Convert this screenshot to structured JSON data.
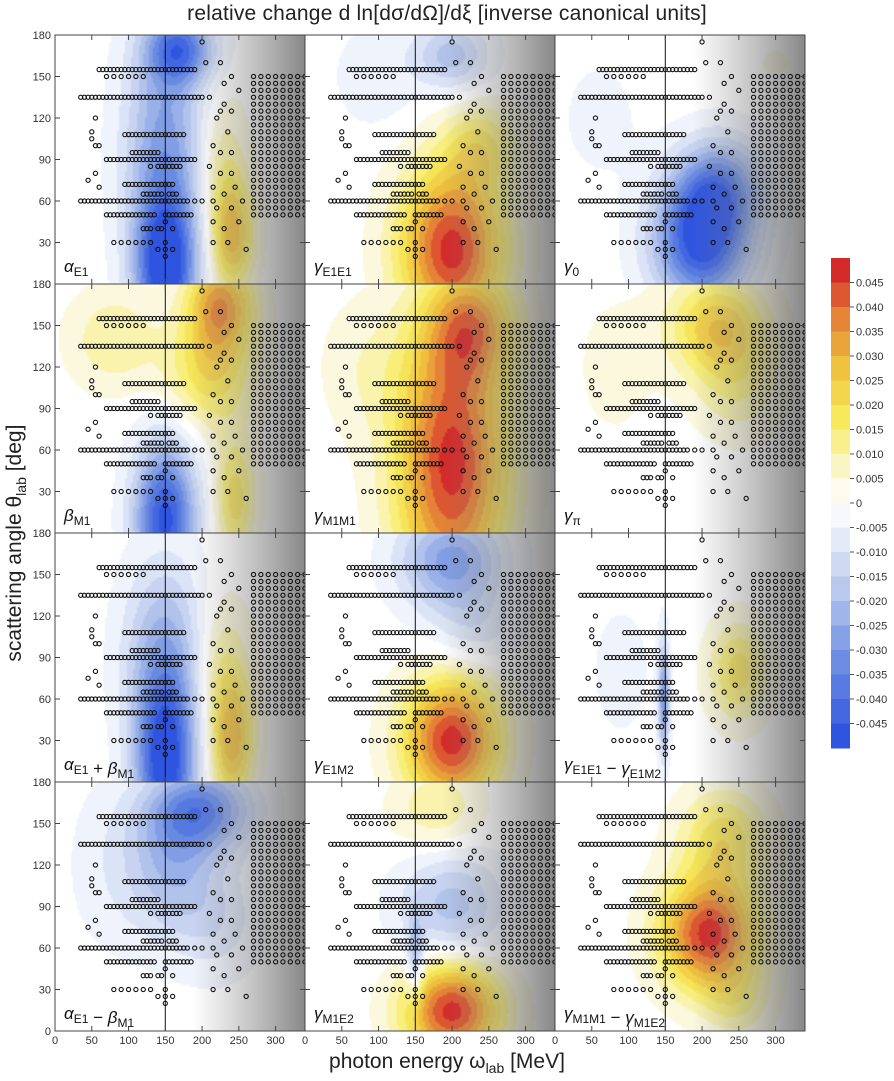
{
  "chart_data": {
    "type": "heatmap",
    "title": "relative change  d ln[dσ/dΩ]/dξ  [inverse canonical units]",
    "xlabel": "photon energy ω",
    "xlabel_sub": "lab",
    "xlabel_unit": "[MeV]",
    "ylabel": "scattering angle θ",
    "ylabel_sub": "lab",
    "ylabel_unit": "[deg]",
    "xlim": [
      0,
      340
    ],
    "ylim": [
      0,
      180
    ],
    "x_ticks": [
      0,
      50,
      100,
      150,
      200,
      250,
      300
    ],
    "y_ticks": [
      0,
      30,
      60,
      90,
      120,
      150,
      180
    ],
    "threshold_energy": 150,
    "colorbar": {
      "ticks": [
        "0.045",
        "0.040",
        "0.035",
        "0.030",
        "0.025",
        "0.020",
        "0.015",
        "0.010",
        "0.005",
        "0",
        "-0.005",
        "-0.010",
        "-0.015",
        "-0.020",
        "-0.025",
        "-0.030",
        "-0.035",
        "-0.040",
        "-0.045"
      ],
      "range": [
        -0.05,
        0.05
      ],
      "negative_color": "#2f55e0",
      "positive_color": "#d42a2a",
      "mid_color": "#f2ec46"
    },
    "panels": [
      {
        "label": "α",
        "sub": "E1",
        "blobs": [
          [
            150,
            10,
            -0.05,
            40,
            50
          ],
          [
            150,
            95,
            -0.03,
            55,
            90
          ],
          [
            170,
            170,
            -0.035,
            45,
            25
          ],
          [
            240,
            35,
            0.03,
            30,
            40
          ],
          [
            225,
            90,
            0.012,
            35,
            50
          ]
        ]
      },
      {
        "label": "γ",
        "sub": "E1E1",
        "blobs": [
          [
            200,
            25,
            0.05,
            70,
            60
          ],
          [
            240,
            100,
            0.015,
            50,
            30
          ],
          [
            200,
            165,
            -0.02,
            50,
            25
          ],
          [
            100,
            150,
            -0.006,
            60,
            40
          ]
        ]
      },
      {
        "label": "γ",
        "sub": "0",
        "blobs": [
          [
            200,
            30,
            -0.05,
            65,
            45
          ],
          [
            225,
            70,
            -0.03,
            60,
            35
          ],
          [
            60,
            120,
            -0.004,
            60,
            50
          ],
          [
            300,
            160,
            0.003,
            40,
            20
          ]
        ]
      },
      {
        "label": "β",
        "sub": "M1",
        "blobs": [
          [
            150,
            10,
            -0.05,
            42,
            55
          ],
          [
            225,
            165,
            0.035,
            45,
            35
          ],
          [
            210,
            115,
            0.02,
            60,
            40
          ],
          [
            80,
            140,
            0.012,
            60,
            35
          ],
          [
            245,
            25,
            0.02,
            28,
            45
          ]
        ]
      },
      {
        "label": "γ",
        "sub": "M1M1",
        "blobs": [
          [
            200,
            50,
            0.05,
            75,
            100
          ],
          [
            225,
            150,
            0.03,
            60,
            40
          ],
          [
            80,
            120,
            0.006,
            60,
            50
          ]
        ]
      },
      {
        "label": "γ",
        "sub": "π",
        "blobs": [
          [
            220,
            150,
            0.025,
            65,
            35
          ],
          [
            250,
            110,
            0.012,
            60,
            40
          ],
          [
            80,
            120,
            0.004,
            60,
            60
          ]
        ]
      },
      {
        "label": "α",
        "sub": "E1",
        "op": " + ",
        "label2": "β",
        "sub2": "M1",
        "blobs": [
          [
            150,
            10,
            -0.05,
            40,
            60
          ],
          [
            150,
            90,
            -0.025,
            55,
            70
          ],
          [
            240,
            30,
            0.03,
            30,
            45
          ],
          [
            225,
            85,
            0.012,
            40,
            50
          ]
        ]
      },
      {
        "label": "γ",
        "sub": "E1M2",
        "blobs": [
          [
            200,
            30,
            0.05,
            65,
            45
          ],
          [
            200,
            160,
            -0.03,
            70,
            35
          ],
          [
            230,
            110,
            -0.01,
            60,
            30
          ]
        ]
      },
      {
        "label": "γ",
        "sub": "E1E1",
        "op": " − ",
        "label2": "γ",
        "sub2": "E1M2",
        "blobs": [
          [
            148,
            60,
            -0.03,
            8,
            40
          ],
          [
            250,
            80,
            0.02,
            40,
            35
          ],
          [
            90,
            80,
            -0.004,
            50,
            60
          ]
        ]
      },
      {
        "label": "α",
        "sub": "E1",
        "op": " − ",
        "label2": "β",
        "sub2": "M1",
        "blobs": [
          [
            200,
            160,
            -0.035,
            70,
            30
          ],
          [
            160,
            120,
            -0.02,
            60,
            50
          ],
          [
            220,
            80,
            -0.01,
            60,
            40
          ],
          [
            80,
            120,
            -0.006,
            60,
            60
          ]
        ]
      },
      {
        "label": "γ",
        "sub": "M1E2",
        "blobs": [
          [
            200,
            15,
            0.05,
            65,
            35
          ],
          [
            200,
            90,
            -0.02,
            70,
            40
          ],
          [
            180,
            160,
            0.012,
            60,
            30
          ],
          [
            150,
            50,
            -0.02,
            12,
            30
          ]
        ]
      },
      {
        "label": "γ",
        "sub": "M1M1",
        "op": " − ",
        "label2": "γ",
        "sub2": "M1E2",
        "blobs": [
          [
            210,
            70,
            0.05,
            65,
            40
          ],
          [
            230,
            140,
            0.02,
            60,
            35
          ],
          [
            250,
            20,
            0.01,
            45,
            25
          ]
        ]
      }
    ],
    "measured_points_description_hidden": "",
    "data_points": [
      [
        35,
        135
      ],
      [
        40,
        135
      ],
      [
        45,
        135
      ],
      [
        50,
        135
      ],
      [
        55,
        135
      ],
      [
        60,
        135
      ],
      [
        65,
        135
      ],
      [
        70,
        135
      ],
      [
        75,
        135
      ],
      [
        80,
        135
      ],
      [
        85,
        135
      ],
      [
        90,
        135
      ],
      [
        95,
        135
      ],
      [
        100,
        135
      ],
      [
        105,
        135
      ],
      [
        110,
        135
      ],
      [
        115,
        135
      ],
      [
        120,
        135
      ],
      [
        125,
        135
      ],
      [
        130,
        135
      ],
      [
        135,
        135
      ],
      [
        140,
        135
      ],
      [
        145,
        135
      ],
      [
        150,
        135
      ],
      [
        155,
        135
      ],
      [
        160,
        135
      ],
      [
        165,
        135
      ],
      [
        170,
        135
      ],
      [
        175,
        135
      ],
      [
        180,
        135
      ],
      [
        185,
        135
      ],
      [
        190,
        135
      ],
      [
        195,
        135
      ],
      [
        200,
        135
      ],
      [
        210,
        135
      ],
      [
        35,
        60
      ],
      [
        40,
        60
      ],
      [
        45,
        60
      ],
      [
        50,
        60
      ],
      [
        55,
        60
      ],
      [
        60,
        60
      ],
      [
        65,
        60
      ],
      [
        70,
        60
      ],
      [
        75,
        60
      ],
      [
        80,
        60
      ],
      [
        85,
        60
      ],
      [
        90,
        60
      ],
      [
        95,
        60
      ],
      [
        100,
        60
      ],
      [
        105,
        60
      ],
      [
        110,
        60
      ],
      [
        115,
        60
      ],
      [
        120,
        60
      ],
      [
        125,
        60
      ],
      [
        130,
        60
      ],
      [
        135,
        60
      ],
      [
        140,
        60
      ],
      [
        145,
        60
      ],
      [
        150,
        60
      ],
      [
        155,
        60
      ],
      [
        160,
        60
      ],
      [
        165,
        60
      ],
      [
        170,
        60
      ],
      [
        175,
        60
      ],
      [
        180,
        60
      ],
      [
        190,
        60
      ],
      [
        200,
        60
      ],
      [
        215,
        60
      ],
      [
        60,
        155
      ],
      [
        65,
        155
      ],
      [
        70,
        155
      ],
      [
        75,
        155
      ],
      [
        80,
        155
      ],
      [
        85,
        155
      ],
      [
        90,
        155
      ],
      [
        95,
        155
      ],
      [
        100,
        155
      ],
      [
        105,
        155
      ],
      [
        110,
        155
      ],
      [
        115,
        155
      ],
      [
        120,
        155
      ],
      [
        125,
        155
      ],
      [
        130,
        155
      ],
      [
        135,
        155
      ],
      [
        140,
        155
      ],
      [
        145,
        155
      ],
      [
        150,
        155
      ],
      [
        155,
        155
      ],
      [
        160,
        155
      ],
      [
        165,
        155
      ],
      [
        170,
        155
      ],
      [
        175,
        155
      ],
      [
        180,
        155
      ],
      [
        185,
        155
      ],
      [
        190,
        155
      ],
      [
        70,
        150
      ],
      [
        80,
        150
      ],
      [
        90,
        150
      ],
      [
        100,
        150
      ],
      [
        110,
        150
      ],
      [
        120,
        150
      ],
      [
        70,
        90
      ],
      [
        75,
        90
      ],
      [
        80,
        90
      ],
      [
        85,
        90
      ],
      [
        90,
        90
      ],
      [
        95,
        90
      ],
      [
        100,
        90
      ],
      [
        105,
        90
      ],
      [
        110,
        90
      ],
      [
        115,
        90
      ],
      [
        120,
        90
      ],
      [
        125,
        90
      ],
      [
        130,
        90
      ],
      [
        135,
        90
      ],
      [
        140,
        90
      ],
      [
        145,
        90
      ],
      [
        150,
        90
      ],
      [
        155,
        90
      ],
      [
        160,
        90
      ],
      [
        165,
        90
      ],
      [
        170,
        90
      ],
      [
        175,
        90
      ],
      [
        180,
        90
      ],
      [
        185,
        90
      ],
      [
        190,
        90
      ],
      [
        95,
        108
      ],
      [
        100,
        108
      ],
      [
        105,
        108
      ],
      [
        110,
        108
      ],
      [
        115,
        108
      ],
      [
        120,
        108
      ],
      [
        125,
        108
      ],
      [
        130,
        108
      ],
      [
        135,
        108
      ],
      [
        140,
        108
      ],
      [
        145,
        108
      ],
      [
        150,
        108
      ],
      [
        155,
        108
      ],
      [
        160,
        108
      ],
      [
        165,
        108
      ],
      [
        170,
        108
      ],
      [
        175,
        108
      ],
      [
        95,
        72
      ],
      [
        100,
        72
      ],
      [
        105,
        72
      ],
      [
        110,
        72
      ],
      [
        115,
        72
      ],
      [
        120,
        72
      ],
      [
        125,
        72
      ],
      [
        130,
        72
      ],
      [
        135,
        72
      ],
      [
        140,
        72
      ],
      [
        145,
        72
      ],
      [
        150,
        72
      ],
      [
        155,
        72
      ],
      [
        160,
        72
      ],
      [
        70,
        50
      ],
      [
        75,
        50
      ],
      [
        80,
        50
      ],
      [
        85,
        50
      ],
      [
        90,
        50
      ],
      [
        95,
        50
      ],
      [
        100,
        50
      ],
      [
        105,
        50
      ],
      [
        110,
        50
      ],
      [
        115,
        50
      ],
      [
        120,
        50
      ],
      [
        125,
        50
      ],
      [
        130,
        50
      ],
      [
        135,
        50
      ],
      [
        150,
        50
      ],
      [
        155,
        50
      ],
      [
        160,
        50
      ],
      [
        165,
        50
      ],
      [
        170,
        50
      ],
      [
        175,
        50
      ],
      [
        180,
        50
      ],
      [
        185,
        50
      ],
      [
        130,
        85
      ],
      [
        140,
        85
      ],
      [
        145,
        85
      ],
      [
        150,
        85
      ],
      [
        155,
        85
      ],
      [
        160,
        85
      ],
      [
        165,
        85
      ],
      [
        170,
        85
      ],
      [
        105,
        95
      ],
      [
        110,
        95
      ],
      [
        115,
        95
      ],
      [
        120,
        95
      ],
      [
        125,
        95
      ],
      [
        130,
        95
      ],
      [
        135,
        95
      ],
      [
        140,
        95
      ],
      [
        120,
        65
      ],
      [
        125,
        65
      ],
      [
        130,
        65
      ],
      [
        135,
        65
      ],
      [
        140,
        65
      ],
      [
        145,
        65
      ],
      [
        155,
        65
      ],
      [
        160,
        65
      ],
      [
        165,
        65
      ],
      [
        55,
        120
      ],
      [
        55,
        100
      ],
      [
        55,
        80
      ],
      [
        60,
        70
      ],
      [
        50,
        110
      ],
      [
        50,
        105
      ],
      [
        45,
        75
      ],
      [
        60,
        100
      ],
      [
        120,
        40
      ],
      [
        125,
        40
      ],
      [
        130,
        40
      ],
      [
        140,
        40
      ],
      [
        145,
        40
      ],
      [
        150,
        45
      ],
      [
        160,
        40
      ],
      [
        80,
        30
      ],
      [
        90,
        30
      ],
      [
        100,
        30
      ],
      [
        110,
        30
      ],
      [
        120,
        30
      ],
      [
        130,
        30
      ],
      [
        140,
        25
      ],
      [
        150,
        25
      ],
      [
        160,
        25
      ],
      [
        150,
        30
      ],
      [
        150,
        20
      ],
      [
        230,
        130
      ],
      [
        225,
        125
      ],
      [
        220,
        120
      ],
      [
        240,
        125
      ],
      [
        235,
        110
      ],
      [
        215,
        100
      ],
      [
        225,
        95
      ],
      [
        240,
        95
      ],
      [
        210,
        85
      ],
      [
        225,
        80
      ],
      [
        240,
        80
      ],
      [
        215,
        70
      ],
      [
        230,
        65
      ],
      [
        245,
        70
      ],
      [
        220,
        55
      ],
      [
        240,
        55
      ],
      [
        255,
        60
      ],
      [
        215,
        45
      ],
      [
        230,
        40
      ],
      [
        250,
        45
      ],
      [
        215,
        30
      ],
      [
        235,
        30
      ],
      [
        260,
        25
      ],
      [
        250,
        140
      ],
      [
        240,
        150
      ],
      [
        230,
        145
      ],
      [
        225,
        160
      ],
      [
        200,
        175
      ],
      [
        205,
        160
      ]
    ],
    "grid_points": {
      "x": [
        270,
        280,
        290,
        300,
        310,
        320,
        330,
        340
      ],
      "y": [
        50,
        55,
        60,
        65,
        70,
        75,
        80,
        85,
        90,
        95,
        100,
        105,
        110,
        115,
        120,
        125,
        130,
        135,
        140,
        145,
        150
      ]
    }
  }
}
